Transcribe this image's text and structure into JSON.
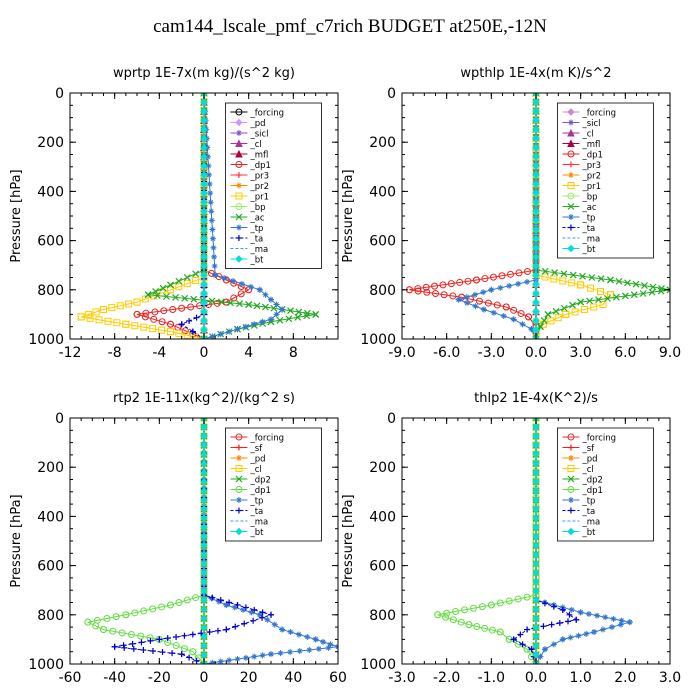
{
  "figure": {
    "title": "cam144_lscale_pmf_c7rich  BUDGET at250E,-12N"
  },
  "chart_data": [
    {
      "type": "line",
      "title": "wprtp   1E-7x(m kg)/(s^2 kg)",
      "ylabel": "Pressure [hPa]",
      "xlim": [
        -12,
        12
      ],
      "ylim": [
        1000,
        0
      ],
      "xticks": [
        "-12",
        "-8",
        "-4",
        "0",
        "4",
        "8"
      ],
      "yticks": [
        "0",
        "200",
        "400",
        "600",
        "800",
        "1000"
      ],
      "grid": false,
      "legend_position": "top-right",
      "series": [
        {
          "name": "_forcing",
          "color": "#000000",
          "marker": "circle",
          "y": [
            0,
            1000
          ],
          "x": [
            0,
            0
          ]
        },
        {
          "name": "_pd",
          "color": "#cc99ff",
          "marker": "diamond",
          "y": [
            0,
            1000
          ],
          "x": [
            0,
            0
          ]
        },
        {
          "name": "_sicl",
          "color": "#7755cc",
          "marker": "star",
          "y": [
            0,
            1000
          ],
          "x": [
            0,
            0
          ]
        },
        {
          "name": "_cl",
          "color": "#aa3399",
          "marker": "triangle",
          "y": [
            0,
            1000
          ],
          "x": [
            0,
            0
          ]
        },
        {
          "name": "_mfl",
          "color": "#aa0044",
          "marker": "triangle",
          "y": [
            0,
            1000
          ],
          "x": [
            0,
            0
          ]
        },
        {
          "name": "_dp1",
          "color": "#ee2222",
          "marker": "circle",
          "y": [
            0,
            720,
            760,
            800,
            850,
            900,
            940,
            980,
            1000
          ],
          "x": [
            0,
            0,
            2,
            4,
            2,
            -6,
            -3,
            -1,
            0
          ]
        },
        {
          "name": "_pr3",
          "color": "#ff3344",
          "marker": "plus",
          "y": [
            0,
            1000
          ],
          "x": [
            0,
            0
          ]
        },
        {
          "name": "_pr2",
          "color": "#ff8800",
          "marker": "star",
          "y": [
            0,
            1000
          ],
          "x": [
            0,
            0
          ]
        },
        {
          "name": "_pr1",
          "color": "#ffcc00",
          "marker": "square",
          "y": [
            0,
            750,
            800,
            850,
            880,
            910,
            940,
            970,
            1000
          ],
          "x": [
            0,
            0,
            -3,
            -6,
            -9,
            -11,
            -7,
            -3,
            0
          ]
        },
        {
          "name": "_bp",
          "color": "#99ee66",
          "marker": "circle",
          "y": [
            0,
            1000
          ],
          "x": [
            0,
            0
          ]
        },
        {
          "name": "_ac",
          "color": "#22aa22",
          "marker": "cross",
          "y": [
            0,
            720,
            780,
            820,
            860,
            900,
            930,
            960,
            1000
          ],
          "x": [
            0,
            0,
            -3,
            -5,
            4,
            10,
            6,
            3,
            0
          ]
        },
        {
          "name": "_tp",
          "color": "#3377cc",
          "marker": "star",
          "y": [
            0,
            740,
            800,
            840,
            880,
            920,
            960,
            1000
          ],
          "x": [
            0,
            1,
            5,
            6,
            7,
            6,
            3,
            0
          ]
        },
        {
          "name": "_ta",
          "color": "#0000cc",
          "marker": "plus",
          "y": [
            0,
            900,
            940,
            970,
            1000
          ],
          "x": [
            0,
            0,
            -2,
            -1,
            0
          ]
        },
        {
          "name": "_ma",
          "color": "#3399ff",
          "marker": "none",
          "y": [
            0,
            1000
          ],
          "x": [
            0,
            0
          ]
        },
        {
          "name": "_bt",
          "color": "#00dddd",
          "marker": "diamond",
          "y": [
            0,
            1000
          ],
          "x": [
            0,
            0
          ]
        }
      ]
    },
    {
      "type": "line",
      "title": "wpthlp   1E-4x(m K)/s^2",
      "ylabel": "Pressure [hPa]",
      "xlim": [
        -9,
        9
      ],
      "ylim": [
        1000,
        0
      ],
      "xticks": [
        "-9.0",
        "-6.0",
        "-3.0",
        "0.0",
        "3.0",
        "6.0",
        "9.0"
      ],
      "yticks": [
        "0",
        "200",
        "400",
        "600",
        "800",
        "1000"
      ],
      "grid": false,
      "legend_position": "top-right",
      "series": [
        {
          "name": "_forcing",
          "color": "#cc88cc",
          "marker": "diamond",
          "y": [
            0,
            1000
          ],
          "x": [
            0,
            0
          ]
        },
        {
          "name": "_sicl",
          "color": "#7755cc",
          "marker": "star",
          "y": [
            0,
            1000
          ],
          "x": [
            0,
            0
          ]
        },
        {
          "name": "_cl",
          "color": "#aa3399",
          "marker": "triangle",
          "y": [
            0,
            1000
          ],
          "x": [
            0,
            0
          ]
        },
        {
          "name": "_mfl",
          "color": "#aa0044",
          "marker": "triangle",
          "y": [
            0,
            1000
          ],
          "x": [
            0,
            0
          ]
        },
        {
          "name": "_dp1",
          "color": "#ee2222",
          "marker": "circle",
          "y": [
            0,
            720,
            760,
            800,
            830,
            870,
            910,
            950,
            1000
          ],
          "x": [
            0,
            0,
            -4,
            -8.5,
            -5,
            -2,
            -0.5,
            0,
            0
          ]
        },
        {
          "name": "_pr3",
          "color": "#ff3344",
          "marker": "plus",
          "y": [
            0,
            1000
          ],
          "x": [
            0,
            0
          ]
        },
        {
          "name": "_pr2",
          "color": "#ff8800",
          "marker": "star",
          "y": [
            0,
            1000
          ],
          "x": [
            0,
            0
          ]
        },
        {
          "name": "_pr1",
          "color": "#ffcc00",
          "marker": "square",
          "y": [
            0,
            740,
            780,
            820,
            860,
            900,
            940,
            980,
            1000
          ],
          "x": [
            0,
            0,
            3,
            5,
            4.5,
            2,
            0.5,
            0,
            0
          ]
        },
        {
          "name": "_bp",
          "color": "#99ee66",
          "marker": "circle",
          "y": [
            0,
            1000
          ],
          "x": [
            0,
            0
          ]
        },
        {
          "name": "_ac",
          "color": "#22aa22",
          "marker": "cross",
          "y": [
            0,
            720,
            760,
            800,
            850,
            900,
            950,
            1000
          ],
          "x": [
            0,
            0,
            5,
            9,
            3,
            0.8,
            0.3,
            0
          ]
        },
        {
          "name": "_tp",
          "color": "#3377cc",
          "marker": "star",
          "y": [
            0,
            760,
            800,
            840,
            880,
            920,
            960,
            1000
          ],
          "x": [
            0,
            0,
            -3,
            -5.2,
            -3.5,
            -1.5,
            -0.3,
            0
          ]
        },
        {
          "name": "_ta",
          "color": "#0000cc",
          "marker": "plus",
          "y": [
            0,
            1000
          ],
          "x": [
            0,
            0
          ]
        },
        {
          "name": "_ma",
          "color": "#3399ff",
          "marker": "none",
          "y": [
            0,
            1000
          ],
          "x": [
            0,
            0
          ]
        },
        {
          "name": "_bt",
          "color": "#00dddd",
          "marker": "diamond",
          "y": [
            0,
            1000
          ],
          "x": [
            0,
            0
          ]
        }
      ]
    },
    {
      "type": "line",
      "title": "rtp2   1E-11x(kg^2)/(kg^2 s)",
      "ylabel": "Pressure [hPa]",
      "xlim": [
        -60,
        60
      ],
      "ylim": [
        1000,
        0
      ],
      "xticks": [
        "-60",
        "-40",
        "-20",
        "0",
        "20",
        "40",
        "60"
      ],
      "yticks": [
        "0",
        "200",
        "400",
        "600",
        "800",
        "1000"
      ],
      "grid": false,
      "legend_position": "top-right",
      "series": [
        {
          "name": "_forcing",
          "color": "#dd3333",
          "marker": "circle",
          "y": [
            0,
            1000
          ],
          "x": [
            0,
            0
          ]
        },
        {
          "name": "_sf",
          "color": "#ee2222",
          "marker": "plus",
          "y": [
            0,
            1000
          ],
          "x": [
            0,
            0
          ]
        },
        {
          "name": "_pd",
          "color": "#ff8800",
          "marker": "star",
          "y": [
            0,
            1000
          ],
          "x": [
            0,
            0
          ]
        },
        {
          "name": "_cl",
          "color": "#ffcc00",
          "marker": "square",
          "y": [
            0,
            1000
          ],
          "x": [
            0,
            0
          ]
        },
        {
          "name": "_dp2",
          "color": "#22aa22",
          "marker": "cross",
          "y": [
            0,
            1000
          ],
          "x": [
            0,
            0
          ]
        },
        {
          "name": "_dp1",
          "color": "#66dd44",
          "marker": "circle",
          "y": [
            0,
            720,
            760,
            800,
            830,
            860,
            900,
            950,
            1000
          ],
          "x": [
            0,
            0,
            -15,
            -35,
            -52,
            -45,
            -20,
            -5,
            0
          ]
        },
        {
          "name": "_tp",
          "color": "#3377cc",
          "marker": "star",
          "y": [
            0,
            720,
            760,
            800,
            860,
            900,
            930,
            960,
            1000
          ],
          "x": [
            0,
            0,
            10,
            25,
            35,
            50,
            60,
            30,
            0
          ]
        },
        {
          "name": "_ta",
          "color": "#0000cc",
          "marker": "plus",
          "y": [
            0,
            720,
            760,
            800,
            860,
            900,
            930,
            960,
            1000
          ],
          "x": [
            0,
            0,
            15,
            30,
            10,
            -20,
            -40,
            -10,
            0
          ]
        },
        {
          "name": "_ma",
          "color": "#3399ff",
          "marker": "none",
          "y": [
            0,
            1000
          ],
          "x": [
            0,
            0
          ]
        },
        {
          "name": "_bt",
          "color": "#00dddd",
          "marker": "diamond",
          "y": [
            0,
            1000
          ],
          "x": [
            0,
            0
          ]
        }
      ]
    },
    {
      "type": "line",
      "title": "thlp2   1E-4x(K^2)/s",
      "ylabel": "Pressure [hPa]",
      "xlim": [
        -3,
        3
      ],
      "ylim": [
        1000,
        0
      ],
      "xticks": [
        "-3.0",
        "-2.0",
        "-1.0",
        "0.0",
        "1.0",
        "2.0",
        "3.0"
      ],
      "yticks": [
        "0",
        "200",
        "400",
        "600",
        "800",
        "1000"
      ],
      "grid": false,
      "legend_position": "top-right",
      "series": [
        {
          "name": "_forcing",
          "color": "#dd3333",
          "marker": "circle",
          "y": [
            0,
            1000
          ],
          "x": [
            0,
            0
          ]
        },
        {
          "name": "_sf",
          "color": "#ee2222",
          "marker": "plus",
          "y": [
            0,
            1000
          ],
          "x": [
            0,
            0
          ]
        },
        {
          "name": "_pd",
          "color": "#ff8800",
          "marker": "star",
          "y": [
            0,
            1000
          ],
          "x": [
            0,
            0
          ]
        },
        {
          "name": "_cl",
          "color": "#ffcc00",
          "marker": "square",
          "y": [
            0,
            1000
          ],
          "x": [
            0,
            0
          ]
        },
        {
          "name": "_dp2",
          "color": "#22aa22",
          "marker": "cross",
          "y": [
            0,
            1000
          ],
          "x": [
            0,
            0
          ]
        },
        {
          "name": "_dp1",
          "color": "#66dd44",
          "marker": "circle",
          "y": [
            0,
            720,
            760,
            800,
            840,
            870,
            900,
            940,
            1000
          ],
          "x": [
            0,
            0,
            -1,
            -2.2,
            -1.5,
            -0.8,
            -0.6,
            -0.2,
            0
          ]
        },
        {
          "name": "_tp",
          "color": "#3377cc",
          "marker": "star",
          "y": [
            0,
            740,
            790,
            830,
            870,
            900,
            940,
            1000
          ],
          "x": [
            0,
            0,
            1,
            2.1,
            1.3,
            0.6,
            0.2,
            0
          ]
        },
        {
          "name": "_ta",
          "color": "#0000cc",
          "marker": "plus",
          "y": [
            0,
            740,
            780,
            820,
            860,
            900,
            940,
            1000
          ],
          "x": [
            0,
            0,
            0.6,
            0.9,
            -0.2,
            -0.5,
            -0.1,
            0
          ]
        },
        {
          "name": "_ma",
          "color": "#3399ff",
          "marker": "none",
          "y": [
            0,
            1000
          ],
          "x": [
            0,
            0
          ]
        },
        {
          "name": "_bt",
          "color": "#00dddd",
          "marker": "diamond",
          "y": [
            0,
            1000
          ],
          "x": [
            0,
            0
          ]
        }
      ]
    }
  ]
}
